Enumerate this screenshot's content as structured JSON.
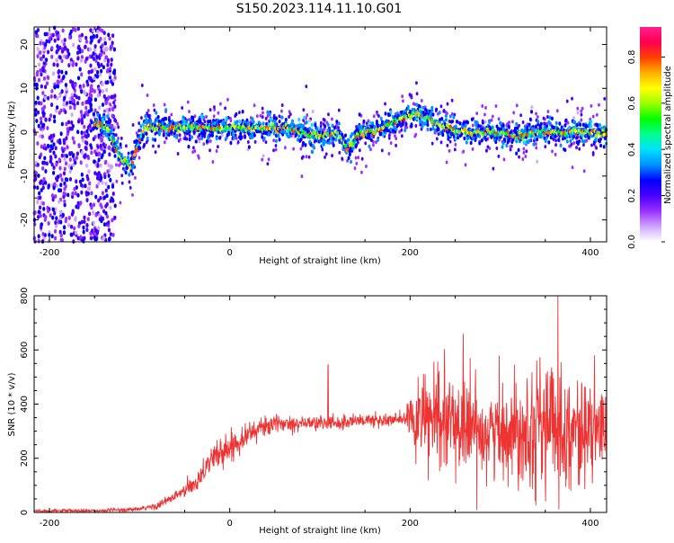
{
  "figure": {
    "title": "S150.2023.114.11.10.G01"
  },
  "chart_data": [
    {
      "type": "heatmap",
      "xlabel": "Height of straight line (km)",
      "ylabel": "Frequency (Hz)",
      "xlim": [
        -217,
        418
      ],
      "ylim": [
        -25,
        24
      ],
      "xticks": [
        -200,
        0,
        200,
        400
      ],
      "yticks": [
        -20,
        -10,
        0,
        10,
        20
      ],
      "colorbar": {
        "label": "Normalized spectral amplitude",
        "range": [
          0,
          0.93
        ],
        "ticks": [
          0.0,
          0.2,
          0.4,
          0.6,
          0.8
        ],
        "colors": [
          "#ffffff",
          "#cfa6ff",
          "#9b30ff",
          "#4a00ff",
          "#0000ff",
          "#0090ff",
          "#00e0ff",
          "#00ff90",
          "#00ff00",
          "#9bff00",
          "#ffff00",
          "#ffb000",
          "#ff4000",
          "#ff0050",
          "#ff2090"
        ]
      },
      "ridge": {
        "x": [
          -170,
          -145,
          -135,
          -130,
          -125,
          -120,
          -115,
          -110,
          -105,
          -100,
          -95,
          -90,
          -80,
          -60,
          -40,
          -20,
          0,
          20,
          40,
          60,
          80,
          100,
          120,
          130,
          135,
          140,
          150,
          160,
          180,
          190,
          200,
          210,
          220,
          230,
          240,
          260,
          280,
          300,
          320,
          340,
          360,
          380,
          400,
          418
        ],
        "y": [
          1,
          2,
          1,
          -2,
          -4,
          -6,
          -7,
          -8,
          -5,
          -2,
          1,
          1,
          1,
          1,
          1,
          1,
          1,
          1,
          1,
          1,
          0,
          -1,
          0,
          -4,
          -3,
          -1,
          0,
          0,
          2,
          3,
          4,
          4,
          3,
          2,
          1,
          0,
          0,
          0,
          -1,
          0,
          0,
          0,
          0,
          0
        ]
      }
    },
    {
      "type": "line",
      "xlabel": "Height of straight line (km)",
      "ylabel": "SNR (10 * v/v)",
      "xlim": [
        -217,
        418
      ],
      "ylim": [
        0,
        800
      ],
      "xticks": [
        -200,
        0,
        200,
        400
      ],
      "yticks": [
        0,
        200,
        400,
        600,
        800
      ],
      "color": "#ee3333",
      "series": [
        {
          "envelope_x": [
            -217,
            -150,
            -100,
            -80,
            -60,
            -40,
            -20,
            0,
            20,
            40,
            60,
            80,
            100,
            120,
            140,
            160,
            180,
            195,
            200,
            220,
            240,
            260,
            280,
            300,
            320,
            340,
            360,
            380,
            400,
            418
          ],
          "envelope_mean": [
            6,
            6,
            12,
            25,
            60,
            100,
            200,
            240,
            290,
            320,
            330,
            330,
            330,
            330,
            340,
            340,
            340,
            345,
            340,
            340,
            330,
            320,
            300,
            300,
            310,
            330,
            320,
            300,
            300,
            300
          ],
          "envelope_spread": [
            4,
            4,
            6,
            10,
            15,
            25,
            35,
            40,
            30,
            25,
            20,
            20,
            20,
            20,
            20,
            20,
            20,
            20,
            80,
            120,
            140,
            130,
            110,
            120,
            140,
            170,
            170,
            140,
            120,
            110
          ],
          "spikes_x": [
            109,
            209,
            259,
            364
          ],
          "spikes_y": [
            545,
            500,
            660,
            800
          ]
        }
      ]
    }
  ]
}
